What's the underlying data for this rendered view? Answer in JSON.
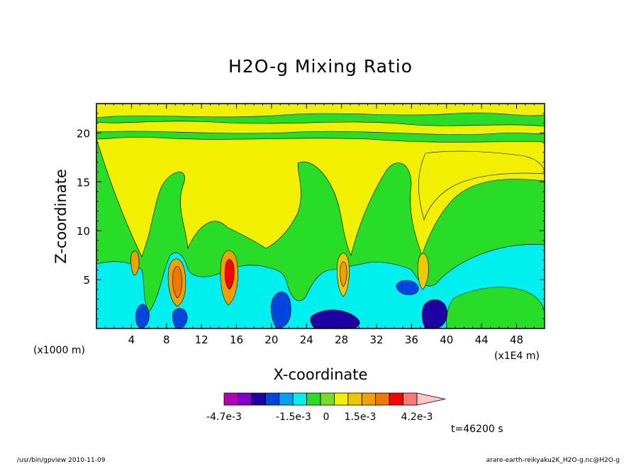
{
  "chart_data": {
    "type": "heatmap",
    "title": "H2O-g Mixing Ratio",
    "xlabel": "X-coordinate",
    "ylabel": "Z-coordinate",
    "x_units": "(x1000 m)",
    "x_tick_scale": "(x1E4 m)",
    "xlim": [
      0,
      51.2
    ],
    "ylim": [
      0,
      23
    ],
    "x_ticks": [
      "4",
      "8",
      "12",
      "16",
      "20",
      "24",
      "28",
      "32",
      "36",
      "40",
      "44",
      "48"
    ],
    "x_tick_values": [
      4,
      8,
      12,
      16,
      20,
      24,
      28,
      32,
      36,
      40,
      44,
      48
    ],
    "y_ticks": [
      "5",
      "10",
      "15",
      "20"
    ],
    "y_tick_values": [
      5,
      10,
      15,
      20
    ],
    "colorbar": {
      "colors": [
        "#b400b4",
        "#8200c8",
        "#1e00a0",
        "#0046dc",
        "#00a0f0",
        "#00f0f0",
        "#28dc28",
        "#78dc28",
        "#f0f000",
        "#f0c800",
        "#f0a000",
        "#f07800",
        "#ff0000",
        "#ff7878",
        "#ffc8c8"
      ],
      "labels": [
        "-4.7e-3",
        "-1.5e-3",
        "0",
        "1.5e-3",
        "4.2e-3"
      ]
    },
    "plumes_x": [
      9.2,
      15,
      28,
      37.5
    ],
    "time_label": "t=46200 s"
  },
  "footer": {
    "left": "/usr/bin/gpview   2010-11-09",
    "right": "arare-earth-reikyaku2K_H2O-g.nc@H2O-g"
  }
}
